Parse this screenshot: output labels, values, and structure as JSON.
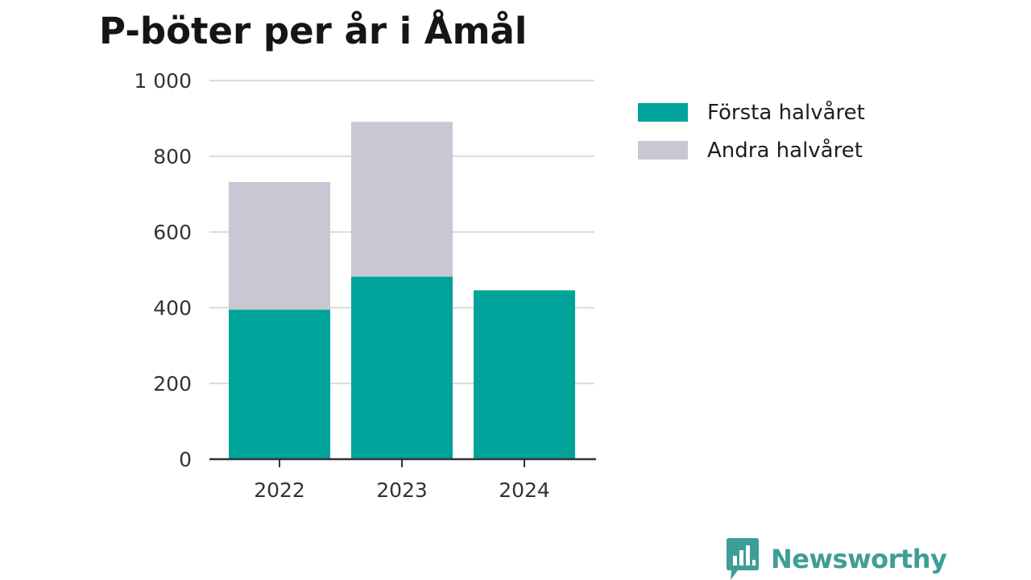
{
  "chart_data": {
    "type": "bar",
    "stacked": true,
    "title": "P-böter per år i Åmål",
    "categories": [
      "2022",
      "2023",
      "2024"
    ],
    "series": [
      {
        "name": "Första halvåret",
        "color": "#00A39A",
        "values": [
          395,
          482,
          446
        ]
      },
      {
        "name": "Andra halvåret",
        "color": "#C8C7D3",
        "values": [
          337,
          409,
          null
        ]
      }
    ],
    "ylim": [
      0,
      1000
    ],
    "yticks": [
      0,
      200,
      400,
      600,
      800,
      1000
    ],
    "ytick_labels": [
      "0",
      "200",
      "400",
      "600",
      "800",
      "1 000"
    ],
    "xlabel": "",
    "ylabel": "",
    "grid": true,
    "legend": "right"
  },
  "brand": {
    "name": "Newsworthy",
    "color": "#3E9E96",
    "icon": "bar-chart-speech-bubble-icon"
  }
}
